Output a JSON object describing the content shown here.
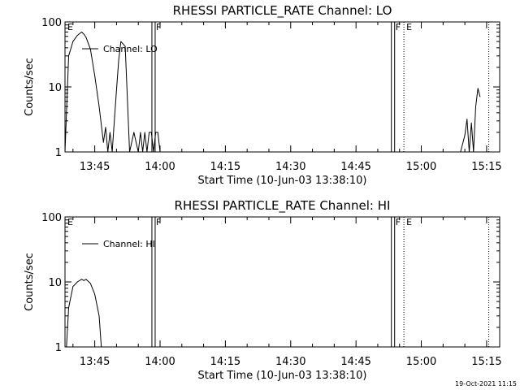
{
  "timestamp": "19-Oct-2021 11:15",
  "chart_data": [
    {
      "type": "line",
      "title": "RHESSI PARTICLE_RATE Channel: LO",
      "xlabel": "Start Time (10-Jun-03 13:38:10)",
      "ylabel": "Counts/sec",
      "yscale": "log",
      "xlim": [
        "13:38:10",
        "15:18:00"
      ],
      "ylim": [
        1,
        100
      ],
      "x_ticks": [
        "13:45",
        "14:00",
        "14:15",
        "14:30",
        "14:45",
        "15:00",
        "15:15"
      ],
      "y_ticks": [
        "1",
        "10",
        "100"
      ],
      "legend": "top-left",
      "series": [
        {
          "name": "Channel: LO",
          "x": [
            "13:38:10",
            "13:39:00",
            "13:40:00",
            "13:41:00",
            "13:42:00",
            "13:42:30",
            "13:43:00",
            "13:44:00",
            "13:45:00",
            "13:46:00",
            "13:47:00",
            "13:47:30",
            "13:48:00",
            "13:48:30",
            "13:49:00",
            "13:49:30",
            "13:50:00",
            "13:50:30",
            "13:51:00",
            "13:52:00",
            "13:53:00",
            "13:54:00",
            "13:55:00",
            "13:55:30",
            "13:56:00",
            "13:56:30",
            "13:57:00",
            "13:57:30",
            "13:58:00",
            "13:58:30",
            "13:59:00",
            "13:59:30",
            "14:00:00",
            "15:09:00",
            "15:10:00",
            "15:10:30",
            "15:11:00",
            "15:11:30",
            "15:12:00",
            "15:12:30",
            "15:13:00",
            "15:13:30"
          ],
          "values": [
            1,
            30,
            50,
            62,
            70,
            65,
            58,
            38,
            15,
            5,
            1.4,
            2.4,
            1,
            2,
            1,
            3,
            9,
            26,
            50,
            42,
            1,
            2,
            1,
            2,
            1,
            2,
            1,
            2,
            2,
            1,
            2,
            2,
            1,
            1,
            1.8,
            3.2,
            1,
            2.8,
            1,
            5,
            9.5,
            7
          ]
        }
      ],
      "flags": [
        {
          "label": "E",
          "time": "13:38:10"
        },
        {
          "label": "F",
          "time": "13:58:30"
        },
        {
          "label": "F",
          "time": "14:53:30"
        },
        {
          "label": "E",
          "time": "14:56:00"
        }
      ]
    },
    {
      "type": "line",
      "title": "RHESSI PARTICLE_RATE Channel: HI",
      "xlabel": "Start Time (10-Jun-03 13:38:10)",
      "ylabel": "Counts/sec",
      "yscale": "log",
      "xlim": [
        "13:38:10",
        "15:18:00"
      ],
      "ylim": [
        1,
        100
      ],
      "x_ticks": [
        "13:45",
        "14:00",
        "14:15",
        "14:30",
        "14:45",
        "15:00",
        "15:15"
      ],
      "y_ticks": [
        "1",
        "10",
        "100"
      ],
      "legend": "top-left",
      "series": [
        {
          "name": "Channel: HI",
          "x": [
            "13:38:30",
            "13:39:00",
            "13:40:00",
            "13:41:00",
            "13:42:00",
            "13:42:30",
            "13:43:00",
            "13:44:00",
            "13:45:00",
            "13:46:00",
            "13:46:30"
          ],
          "values": [
            1,
            4,
            8.5,
            10,
            11,
            10.5,
            11,
            9.5,
            6.5,
            3,
            1
          ]
        }
      ],
      "flags": [
        {
          "label": "E",
          "time": "13:38:10"
        },
        {
          "label": "F",
          "time": "13:58:30"
        },
        {
          "label": "F",
          "time": "14:53:30"
        },
        {
          "label": "E",
          "time": "14:56:00"
        }
      ]
    }
  ]
}
